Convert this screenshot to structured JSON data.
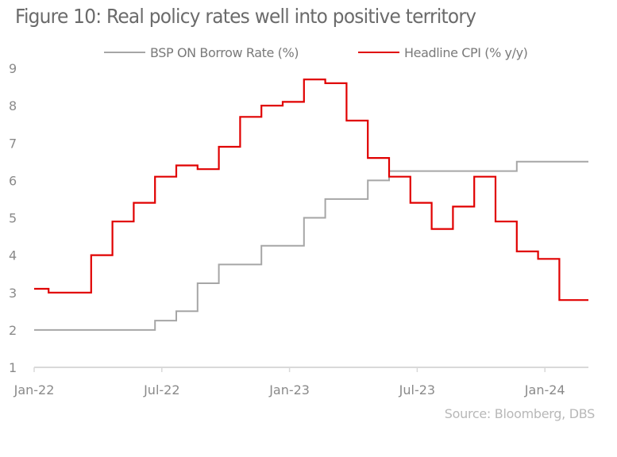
{
  "chart_data": {
    "type": "line",
    "title": "Figure 10: Real policy rates well into positive territory",
    "xlabel": "",
    "ylabel": "",
    "ylim": [
      1,
      9
    ],
    "yticks": [
      "1",
      "2",
      "3",
      "4",
      "5",
      "6",
      "7",
      "8",
      "9"
    ],
    "xticks": [
      "Jan-22",
      "Jul-22",
      "Jan-23",
      "Jul-23",
      "Jan-24"
    ],
    "grid": false,
    "legend_position": "top-center",
    "step": true,
    "x": [
      "Dec-21",
      "Jan-22",
      "Feb-22",
      "Mar-22",
      "Apr-22",
      "May-22",
      "Jun-22",
      "Jul-22",
      "Aug-22",
      "Sep-22",
      "Oct-22",
      "Nov-22",
      "Dec-22",
      "Jan-23",
      "Feb-23",
      "Mar-23",
      "Apr-23",
      "May-23",
      "Jun-23",
      "Jul-23",
      "Aug-23",
      "Sep-23",
      "Oct-23",
      "Nov-23",
      "Dec-23",
      "Jan-24"
    ],
    "series": [
      {
        "name": "BSP ON Borrow Rate (%)",
        "color": "#a6a6a6",
        "values": [
          2.0,
          2.0,
          2.0,
          2.0,
          2.0,
          2.0,
          2.25,
          2.5,
          3.25,
          3.75,
          3.75,
          4.25,
          4.25,
          5.0,
          5.5,
          5.5,
          6.0,
          6.25,
          6.25,
          6.25,
          6.25,
          6.25,
          6.25,
          6.5,
          6.5,
          6.5
        ]
      },
      {
        "name": "Headline CPI (% y/y)",
        "color": "#e00000",
        "values": [
          3.1,
          3.0,
          3.0,
          4.0,
          4.9,
          5.4,
          6.1,
          6.4,
          6.3,
          6.9,
          7.7,
          8.0,
          8.1,
          8.7,
          8.6,
          7.6,
          6.6,
          6.1,
          5.4,
          4.7,
          5.3,
          6.1,
          4.9,
          4.1,
          3.9,
          2.8
        ]
      }
    ],
    "source": "Source: Bloomberg, DBS"
  }
}
